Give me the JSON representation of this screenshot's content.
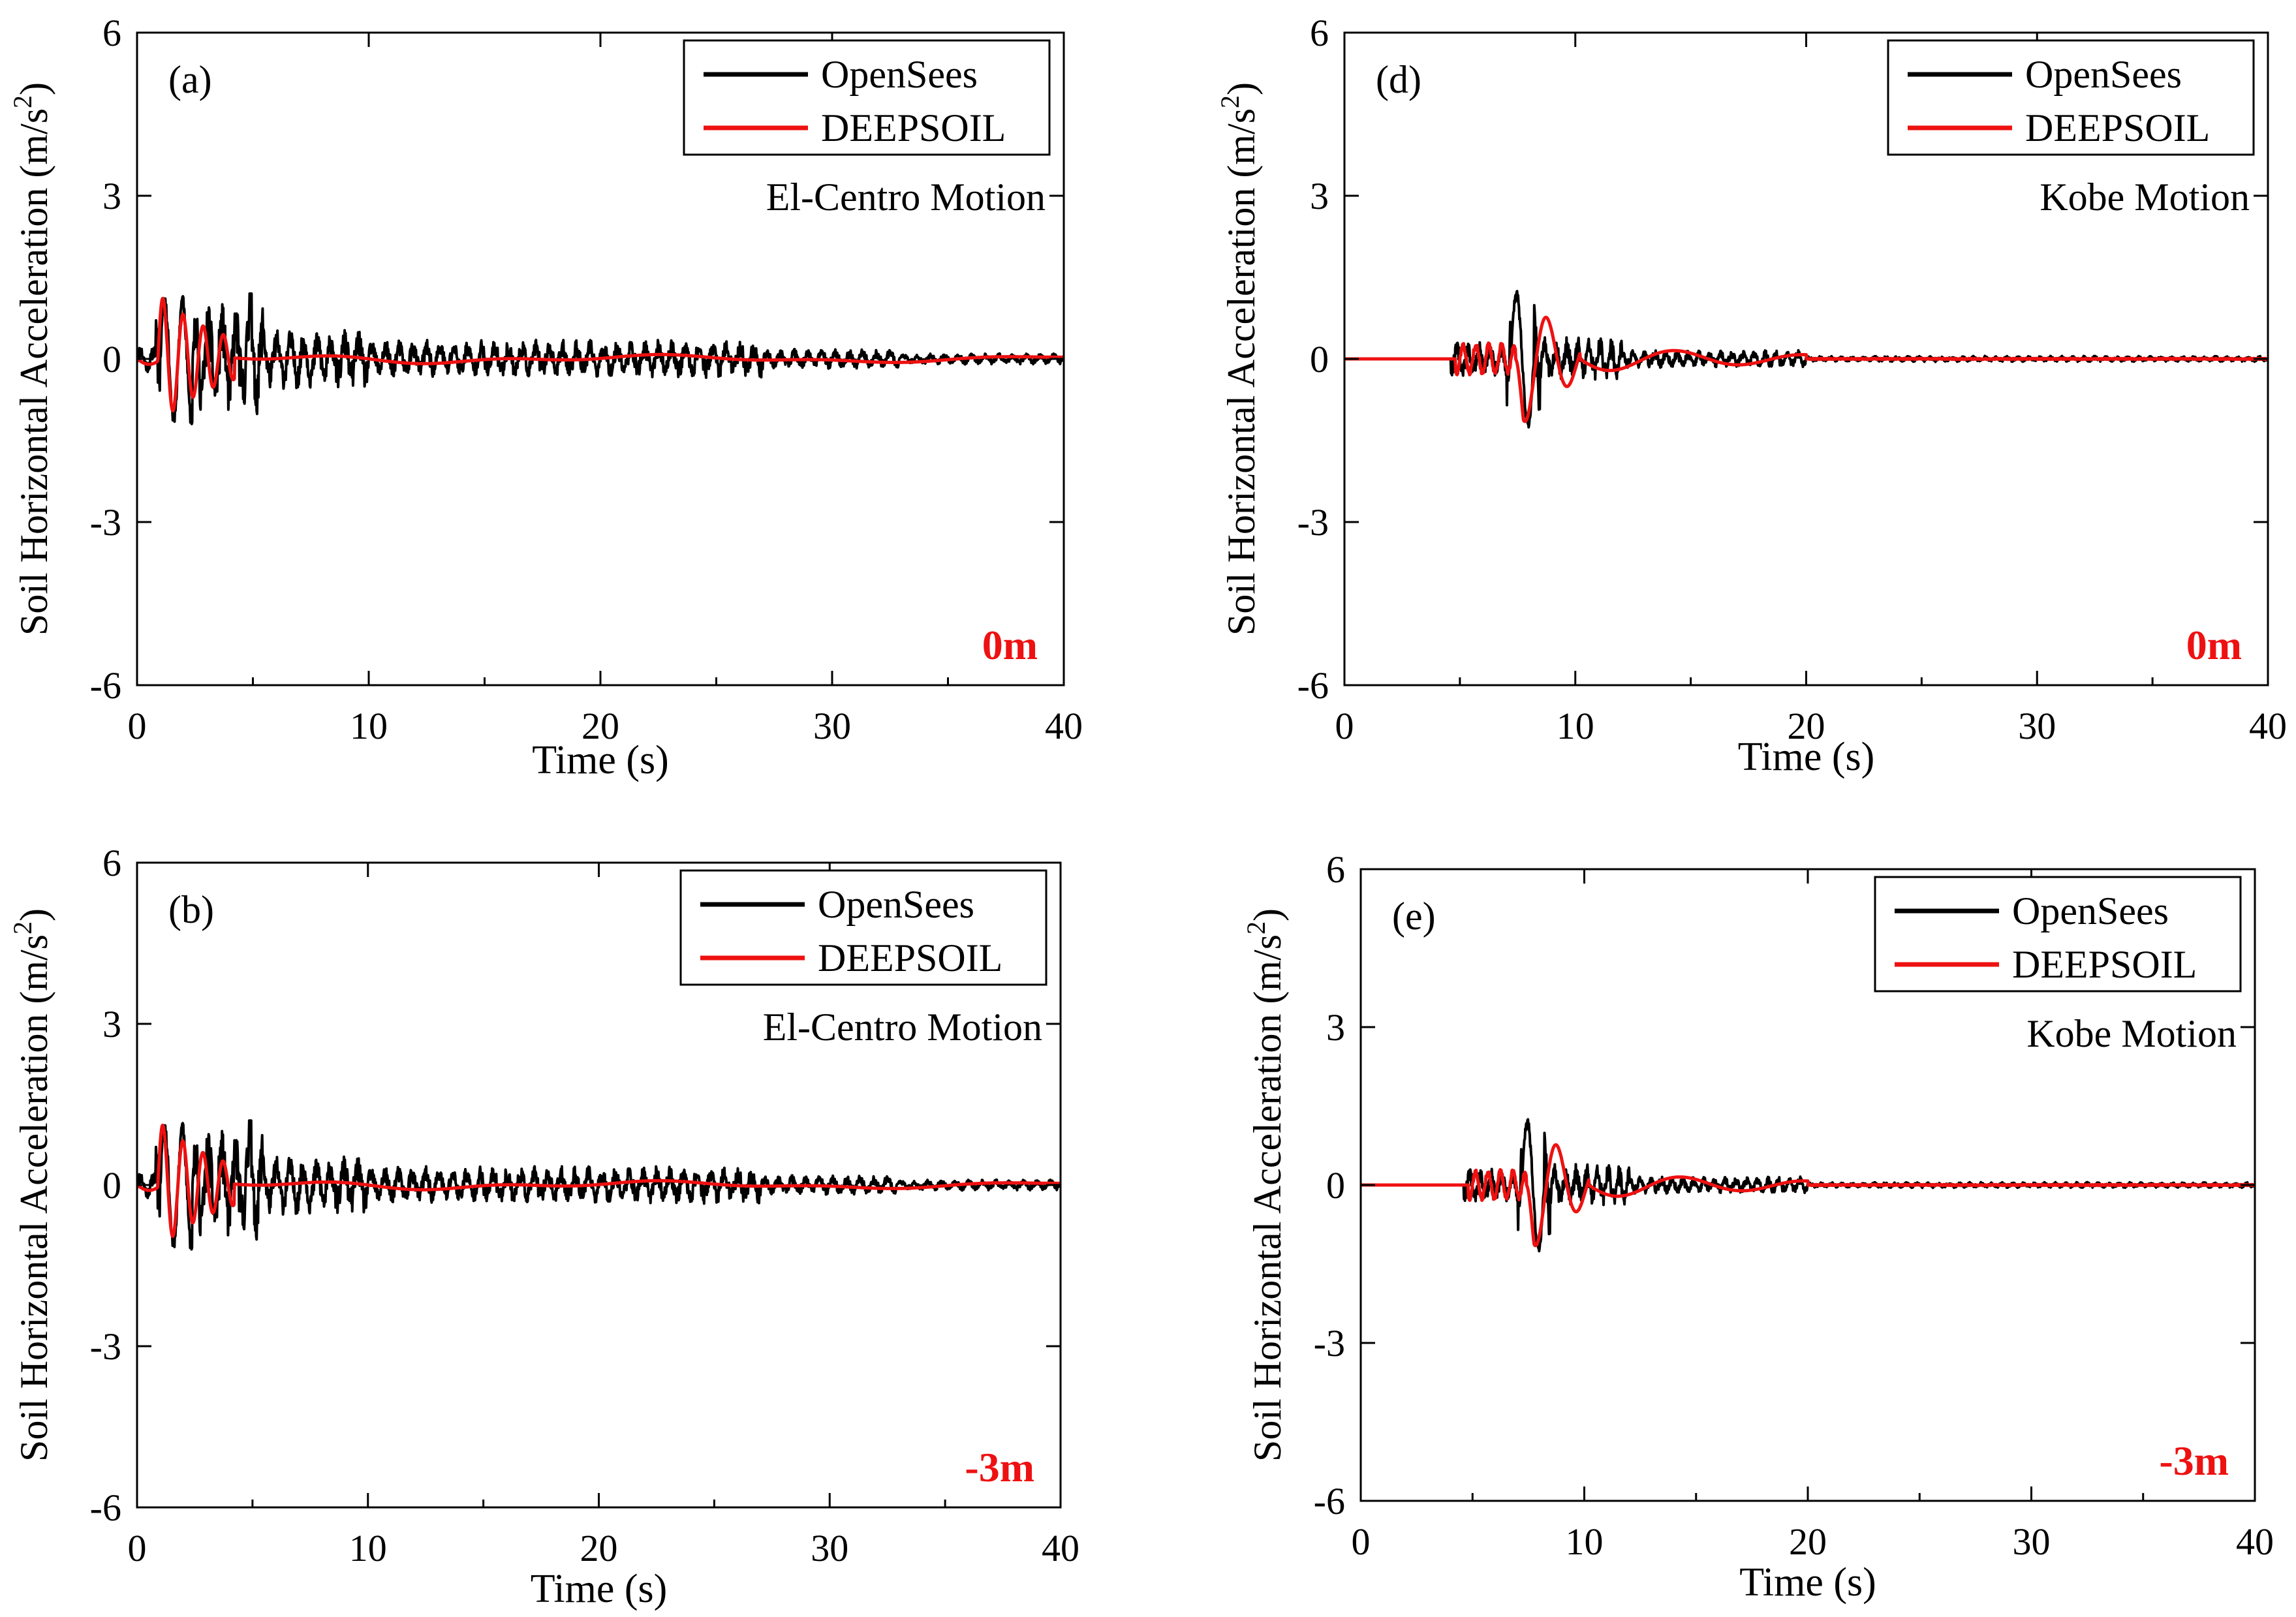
{
  "chart_data": [
    {
      "id": "a",
      "type": "line",
      "panel_label": "(a)",
      "motion_label": "El-Centro Motion",
      "depth_label": "0m",
      "xlabel": "Time (s)",
      "ylabel": "Soil Horizontal Acceleration (m/s",
      "ylabel_sup": "2",
      "ylabel_close": ")",
      "xlim": [
        0,
        40
      ],
      "ylim": [
        -6,
        6
      ],
      "xticks": [
        0,
        10,
        20,
        30,
        40
      ],
      "yticks": [
        6,
        3,
        0,
        -3,
        -6
      ],
      "legend": [
        {
          "name": "OpenSees",
          "color": "#000000"
        },
        {
          "name": "DEEPSOIL",
          "color": "#ee1111"
        }
      ],
      "series": [
        {
          "name": "OpenSees",
          "color": "#000000",
          "profile": "el-centro-opensees"
        },
        {
          "name": "DEEPSOIL",
          "color": "#ee1111",
          "profile": "el-centro-deepsoil"
        }
      ]
    },
    {
      "id": "d",
      "type": "line",
      "panel_label": "(d)",
      "motion_label": "Kobe Motion",
      "depth_label": "0m",
      "xlabel": "Time (s)",
      "ylabel": "Soil Horizontal Acceleration (m/s",
      "ylabel_sup": "2",
      "ylabel_close": ")",
      "xlim": [
        0,
        40
      ],
      "ylim": [
        -6,
        6
      ],
      "xticks": [
        0,
        10,
        20,
        30,
        40
      ],
      "yticks": [
        6,
        3,
        0,
        -3,
        -6
      ],
      "legend": [
        {
          "name": "OpenSees",
          "color": "#000000"
        },
        {
          "name": "DEEPSOIL",
          "color": "#ee1111"
        }
      ],
      "series": [
        {
          "name": "OpenSees",
          "color": "#000000",
          "profile": "kobe-opensees"
        },
        {
          "name": "DEEPSOIL",
          "color": "#ee1111",
          "profile": "kobe-deepsoil"
        }
      ]
    },
    {
      "id": "b",
      "type": "line",
      "panel_label": "(b)",
      "motion_label": "El-Centro Motion",
      "depth_label": "-3m",
      "xlabel": "Time (s)",
      "ylabel": "Soil Horizontal Acceleration (m/s",
      "ylabel_sup": "2",
      "ylabel_close": ")",
      "xlim": [
        0,
        40
      ],
      "ylim": [
        -6,
        6
      ],
      "xticks": [
        0,
        10,
        20,
        30,
        40
      ],
      "yticks": [
        6,
        3,
        0,
        -3,
        -6
      ],
      "legend": [
        {
          "name": "OpenSees",
          "color": "#000000"
        },
        {
          "name": "DEEPSOIL",
          "color": "#ee1111"
        }
      ],
      "series": [
        {
          "name": "OpenSees",
          "color": "#000000",
          "profile": "el-centro-opensees"
        },
        {
          "name": "DEEPSOIL",
          "color": "#ee1111",
          "profile": "el-centro-deepsoil"
        }
      ]
    },
    {
      "id": "e",
      "type": "line",
      "panel_label": "(e)",
      "motion_label": "Kobe Motion",
      "depth_label": "-3m",
      "xlabel": "Time (s)",
      "ylabel": "Soil Horizontal Acceleration (m/s",
      "ylabel_sup": "2",
      "ylabel_close": ")",
      "xlim": [
        0,
        40
      ],
      "ylim": [
        -6,
        6
      ],
      "xticks": [
        0,
        10,
        20,
        30,
        40
      ],
      "yticks": [
        6,
        3,
        0,
        -3,
        -6
      ],
      "legend": [
        {
          "name": "OpenSees",
          "color": "#000000"
        },
        {
          "name": "DEEPSOIL",
          "color": "#ee1111"
        }
      ],
      "series": [
        {
          "name": "OpenSees",
          "color": "#000000",
          "profile": "kobe-opensees"
        },
        {
          "name": "DEEPSOIL",
          "color": "#ee1111",
          "profile": "kobe-deepsoil"
        }
      ]
    }
  ]
}
